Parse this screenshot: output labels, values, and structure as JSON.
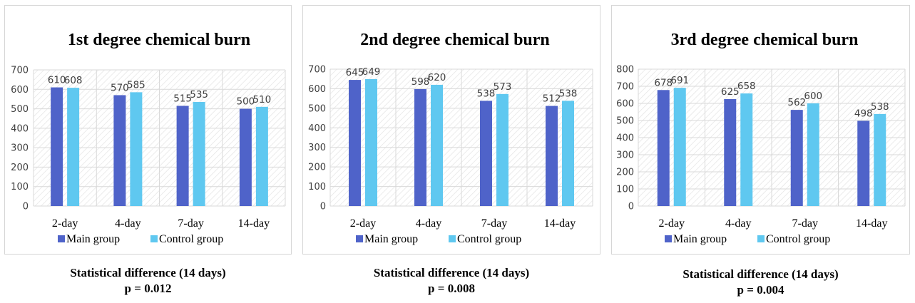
{
  "colors": {
    "main": "#4f63c9",
    "control": "#5fc8f0",
    "grid": "#d9d9d9",
    "hatch": "#e3e3e3",
    "axis_text": "#404040",
    "label_text": "#404040"
  },
  "chart_data": [
    {
      "type": "bar",
      "title": "1st degree chemical burn",
      "categories": [
        "2-day",
        "4-day",
        "7-day",
        "14-day"
      ],
      "series": [
        {
          "name": "Main group",
          "values": [
            610,
            570,
            515,
            500
          ]
        },
        {
          "name": "Control group",
          "values": [
            608,
            585,
            535,
            510
          ]
        }
      ],
      "ylim": [
        0,
        700
      ],
      "yticks": [
        "0",
        "100",
        "200",
        "300",
        "400",
        "500",
        "600",
        "700"
      ],
      "legend": "bottom",
      "caption": {
        "line1": "Statistical difference (14 days)",
        "line2": "p = 0.012"
      }
    },
    {
      "type": "bar",
      "title": "2nd degree chemical burn",
      "categories": [
        "2-day",
        "4-day",
        "7-day",
        "14-day"
      ],
      "series": [
        {
          "name": "Main group",
          "values": [
            645,
            598,
            538,
            512
          ]
        },
        {
          "name": "Control group",
          "values": [
            649,
            620,
            573,
            538
          ]
        }
      ],
      "ylim": [
        0,
        700
      ],
      "yticks": [
        "0",
        "100",
        "200",
        "300",
        "400",
        "500",
        "600",
        "700"
      ],
      "legend": "bottom",
      "caption": {
        "line1": "Statistical difference (14 days)",
        "line2": "p = 0.008"
      }
    },
    {
      "type": "bar",
      "title": "3rd degree chemical burn",
      "categories": [
        "2-day",
        "4-day",
        "7-day",
        "14-day"
      ],
      "series": [
        {
          "name": "Main group",
          "values": [
            678,
            625,
            562,
            498
          ]
        },
        {
          "name": "Control group",
          "values": [
            691,
            658,
            600,
            538
          ]
        }
      ],
      "ylim": [
        0,
        800
      ],
      "yticks": [
        "0",
        "100",
        "200",
        "300",
        "400",
        "500",
        "600",
        "700",
        "800"
      ],
      "legend": "bottom",
      "caption": {
        "line1": "Statistical difference (14 days)",
        "line2": "p = 0.004"
      }
    }
  ]
}
